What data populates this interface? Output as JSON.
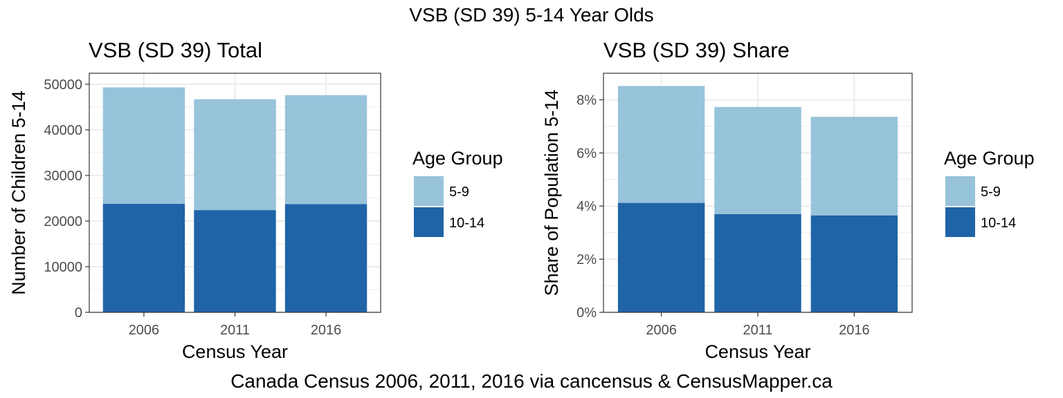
{
  "suptitle": "VSB (SD 39) 5-14 Year Olds",
  "caption": "Canada Census 2006, 2011, 2016 via cancensus & CensusMapper.ca",
  "colors": {
    "age_5_9": "#97c3db",
    "age_10_14": "#1f64a7",
    "grid": "#ebebeb",
    "border": "#333333"
  },
  "chart_data": [
    {
      "type": "bar",
      "stacked": true,
      "title": "VSB (SD 39) Total",
      "xlabel": "Census Year",
      "ylabel": "Number of Children 5-14",
      "categories": [
        "2006",
        "2011",
        "2016"
      ],
      "ylim": [
        0,
        52400
      ],
      "yticks": [
        0,
        10000,
        20000,
        30000,
        40000,
        50000
      ],
      "ytick_labels": [
        "0",
        "10000",
        "20000",
        "30000",
        "40000",
        "50000"
      ],
      "grid": true,
      "legend": {
        "title": "Age Group",
        "position": "right",
        "entries": [
          "5-9",
          "10-14"
        ]
      },
      "series": [
        {
          "name": "10-14",
          "values": [
            23800,
            22400,
            23700
          ]
        },
        {
          "name": "5-9",
          "values": [
            25500,
            24300,
            23900
          ]
        }
      ]
    },
    {
      "type": "bar",
      "stacked": true,
      "title": "VSB (SD 39) Share",
      "xlabel": "Census Year",
      "ylabel": "Share of Population 5-14",
      "categories": [
        "2006",
        "2011",
        "2016"
      ],
      "ylim": [
        0,
        9.0
      ],
      "yticks": [
        0,
        2,
        4,
        6,
        8
      ],
      "ytick_labels": [
        "0%",
        "2%",
        "4%",
        "6%",
        "8%"
      ],
      "grid": true,
      "legend": {
        "title": "Age Group",
        "position": "right",
        "entries": [
          "5-9",
          "10-14"
        ]
      },
      "series": [
        {
          "name": "10-14",
          "values": [
            4.12,
            3.7,
            3.65
          ]
        },
        {
          "name": "5-9",
          "values": [
            4.4,
            4.03,
            3.71
          ]
        }
      ]
    }
  ]
}
